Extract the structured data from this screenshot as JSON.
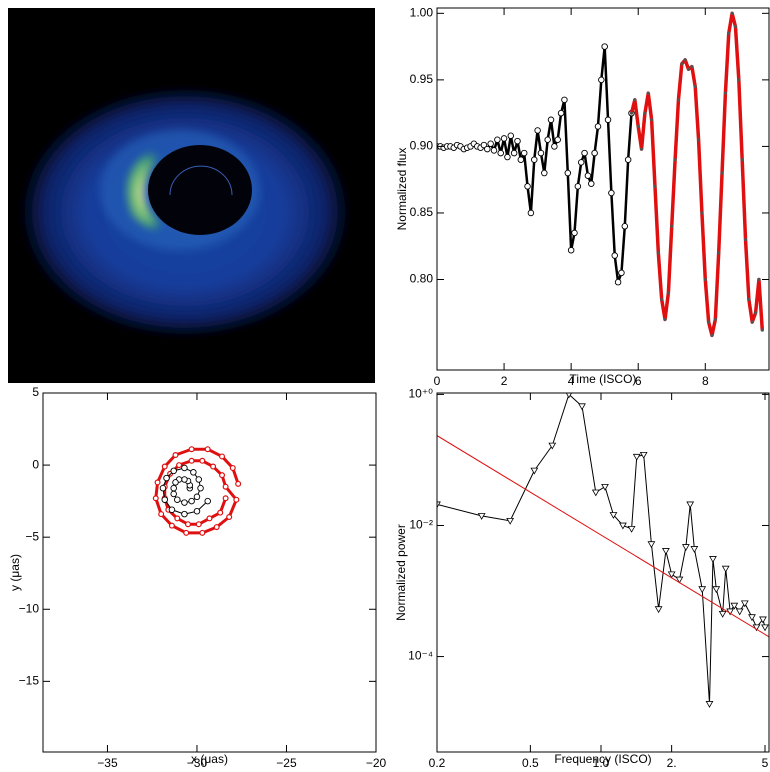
{
  "chart_data": [
    {
      "type": "line",
      "xlabel": "Time (ISCO)",
      "ylabel": "Normalized flux",
      "xlim": [
        0,
        9.9
      ],
      "ylim": [
        0.732,
        1.004
      ],
      "xticks": [
        0,
        2,
        4,
        6,
        8
      ],
      "yticks": [
        {
          "value": 0.8,
          "label": "0.80"
        },
        {
          "value": 0.85,
          "label": "0.85"
        },
        {
          "value": 0.9,
          "label": "0.90"
        },
        {
          "value": 0.95,
          "label": "0.95"
        },
        {
          "value": 1.0,
          "label": "1.00"
        }
      ],
      "series": [
        {
          "color": "#000000",
          "marker": "circle",
          "line_width": 2.5,
          "x": [
            0,
            0.1,
            0.2,
            0.3,
            0.4,
            0.5,
            0.6,
            0.7,
            0.8,
            0.9,
            1.0,
            1.1,
            1.2,
            1.3,
            1.4,
            1.5,
            1.6,
            1.7,
            1.8,
            1.9,
            2.0,
            2.1,
            2.2,
            2.3,
            2.4,
            2.5,
            2.6,
            2.7,
            2.8,
            2.9,
            3.0,
            3.1,
            3.2,
            3.3,
            3.4,
            3.5,
            3.6,
            3.7,
            3.8,
            3.9,
            4.0,
            4.1,
            4.2,
            4.3,
            4.4,
            4.5,
            4.6,
            4.7,
            4.8,
            4.9,
            5.0,
            5.1,
            5.2,
            5.3,
            5.4,
            5.5,
            5.6,
            5.7,
            5.8
          ],
          "values": [
            0.9,
            0.9,
            0.899,
            0.9,
            0.9,
            0.899,
            0.901,
            0.9,
            0.898,
            0.899,
            0.9,
            0.902,
            0.9,
            0.899,
            0.901,
            0.898,
            0.902,
            0.897,
            0.905,
            0.895,
            0.906,
            0.892,
            0.908,
            0.895,
            0.904,
            0.89,
            0.895,
            0.87,
            0.85,
            0.89,
            0.912,
            0.895,
            0.88,
            0.905,
            0.92,
            0.9,
            0.905,
            0.925,
            0.935,
            0.88,
            0.822,
            0.835,
            0.87,
            0.888,
            0.895,
            0.878,
            0.872,
            0.895,
            0.915,
            0.95,
            0.975,
            0.92,
            0.865,
            0.818,
            0.798,
            0.805,
            0.84,
            0.89,
            0.925
          ]
        },
        {
          "color": "#e01010",
          "marker": "dot",
          "line_width": 3.5,
          "x": [
            5.8,
            5.9,
            6.0,
            6.1,
            6.2,
            6.3,
            6.4,
            6.5,
            6.6,
            6.7,
            6.8,
            6.9,
            7.0,
            7.1,
            7.2,
            7.3,
            7.4,
            7.5,
            7.6,
            7.7,
            7.8,
            7.9,
            8.0,
            8.1,
            8.2,
            8.3,
            8.4,
            8.5,
            8.6,
            8.7,
            8.8,
            8.9,
            9.0,
            9.1,
            9.2,
            9.3,
            9.4,
            9.5,
            9.6,
            9.7
          ],
          "values": [
            0.925,
            0.935,
            0.915,
            0.898,
            0.925,
            0.94,
            0.92,
            0.87,
            0.82,
            0.785,
            0.77,
            0.79,
            0.84,
            0.89,
            0.935,
            0.962,
            0.965,
            0.958,
            0.96,
            0.945,
            0.905,
            0.85,
            0.8,
            0.768,
            0.758,
            0.77,
            0.82,
            0.88,
            0.94,
            0.985,
            1.0,
            0.99,
            0.95,
            0.89,
            0.83,
            0.785,
            0.768,
            0.775,
            0.8,
            0.762
          ]
        }
      ]
    },
    {
      "type": "line",
      "xlabel": "x (μas)",
      "ylabel": "y (μas)",
      "xlim": [
        -38.6,
        -20
      ],
      "ylim": [
        -19.9,
        5
      ],
      "xticks": [
        {
          "value": -35,
          "label": "−35"
        },
        {
          "value": -30,
          "label": "−30"
        },
        {
          "value": -25,
          "label": "−25"
        },
        {
          "value": -20,
          "label": "−20"
        }
      ],
      "yticks": [
        5,
        0,
        {
          "value": -5,
          "label": "−5"
        },
        {
          "value": -10,
          "label": "−10"
        },
        {
          "value": -15,
          "label": "−15"
        }
      ],
      "series": [
        {
          "color": "#e01010",
          "marker": "ring",
          "line_width": 3,
          "x": [
            -27.7,
            -28.0,
            -28.6,
            -29.4,
            -30.3,
            -31.2,
            -31.8,
            -32.2,
            -32.3,
            -32.0,
            -31.4,
            -30.6,
            -29.7,
            -28.9,
            -28.2,
            -27.8,
            -28.4,
            -28.6,
            -29.1,
            -29.7,
            -30.3,
            -31.0,
            -31.5,
            -31.8,
            -31.8,
            -31.6,
            -31.1,
            -30.5,
            -29.9,
            -29.3,
            -28.7,
            -28.4
          ],
          "values": [
            -1.3,
            -0.2,
            0.6,
            1.1,
            1.1,
            0.7,
            -0.1,
            -1.2,
            -2.3,
            -3.4,
            -4.2,
            -4.7,
            -4.7,
            -4.3,
            -3.6,
            -2.4,
            -1.5,
            -0.7,
            -0.1,
            0.3,
            0.3,
            0.0,
            -0.6,
            -1.5,
            -2.3,
            -3.1,
            -3.7,
            -4.1,
            -4.1,
            -3.7,
            -3.3,
            -2.3
          ]
        },
        {
          "color": "#000000",
          "marker": "circle",
          "line_width": 1,
          "x": [
            -30.4,
            -30.4,
            -30.5,
            -30.7,
            -31.0,
            -31.2,
            -31.3,
            -31.3,
            -31.1,
            -30.7,
            -30.3,
            -30.0,
            -29.8,
            -29.9,
            -30.2,
            -30.7,
            -31.3,
            -31.7,
            -31.9,
            -31.8,
            -31.4,
            -30.7,
            -30.0,
            -29.4
          ],
          "values": [
            -1.6,
            -1.4,
            -1.1,
            -1.0,
            -1.0,
            -1.2,
            -1.6,
            -2.0,
            -2.4,
            -2.6,
            -2.5,
            -2.2,
            -1.6,
            -1.0,
            -0.5,
            -0.2,
            -0.4,
            -0.9,
            -1.6,
            -2.4,
            -3.1,
            -3.4,
            -3.2,
            -2.5
          ]
        }
      ]
    },
    {
      "type": "line",
      "xlabel": "Frequency (ISCO)",
      "ylabel": "Normalized power",
      "xscale": "log",
      "yscale": "log",
      "xlim": [
        0.2,
        5.2
      ],
      "ylim": [
        3.5e-06,
        1.05
      ],
      "xticks": [
        0.2,
        0.5,
        {
          "value": 1,
          "label": "1.0"
        },
        {
          "value": 2,
          "label": "2."
        },
        5
      ],
      "yticks": [
        {
          "value": 1,
          "label": "10⁺⁰"
        },
        {
          "value": 0.01,
          "label": "10⁻²"
        },
        {
          "value": 0.0001,
          "label": "10⁻⁴"
        }
      ],
      "series": [
        {
          "color": "#000000",
          "marker": "triangle",
          "line_width": 1,
          "x": [
            0.2,
            0.31,
            0.41,
            0.52,
            0.62,
            0.73,
            0.83,
            0.95,
            1.04,
            1.13,
            1.24,
            1.35,
            1.42,
            1.52,
            1.64,
            1.76,
            1.89,
            2.0,
            2.16,
            2.3,
            2.4,
            2.5,
            2.7,
            2.9,
            3.0,
            3.1,
            3.3,
            3.4,
            3.55,
            3.7,
            3.9,
            4.1,
            4.4,
            4.6,
            4.9,
            5.0
          ],
          "values": [
            0.021,
            0.014,
            0.0118,
            0.069,
            0.166,
            1.0,
            0.66,
            0.032,
            0.039,
            0.0145,
            0.01,
            0.0089,
            0.112,
            0.12,
            0.0052,
            0.00053,
            0.0041,
            0.0018,
            0.0015,
            0.0047,
            0.021,
            0.0044,
            0.00107,
            1.9e-05,
            0.0031,
            0.00107,
            0.00045,
            0.0022,
            0.00049,
            0.0006,
            0.00049,
            0.00065,
            0.0004,
            0.00028,
            0.00037,
            0.00028
          ]
        },
        {
          "color": "#e01010",
          "marker": "none",
          "line_width": 1,
          "x": [
            0.2,
            5.2
          ],
          "values": [
            0.235,
            0.0002
          ]
        }
      ]
    }
  ]
}
